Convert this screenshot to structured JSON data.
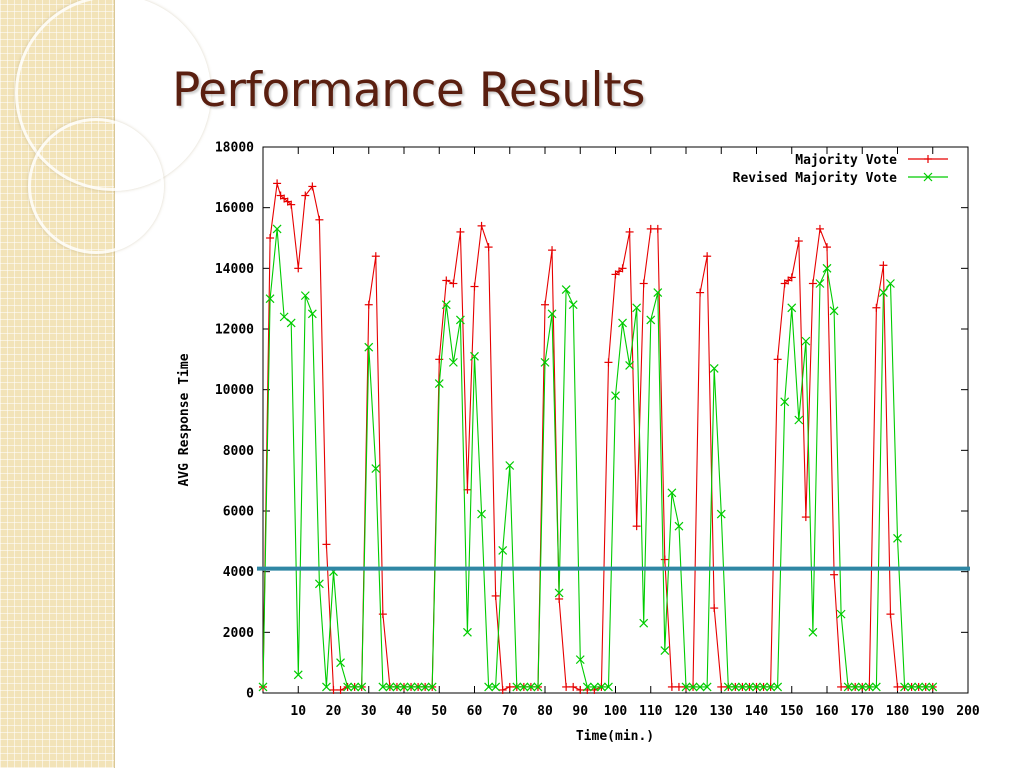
{
  "slide": {
    "title": "Performance Results"
  },
  "colors": {
    "title": "#5a1f10",
    "majority_vote": "#e60000",
    "revised_majority_vote": "#00cc00",
    "threshold_line": "#2f87a4",
    "side_panel": "#f2e3b8"
  },
  "chart_data": {
    "type": "line",
    "xlabel": "Time(min.)",
    "ylabel": "AVG Response Time",
    "xlim": [
      0,
      200
    ],
    "ylim": [
      0,
      18000
    ],
    "xticks": [
      10,
      20,
      30,
      40,
      50,
      60,
      70,
      80,
      90,
      100,
      110,
      120,
      130,
      140,
      150,
      160,
      170,
      180,
      190,
      200
    ],
    "yticks": [
      0,
      2000,
      4000,
      6000,
      8000,
      10000,
      12000,
      14000,
      16000,
      18000
    ],
    "legend_position": "top-right",
    "grid": false,
    "threshold_line_y": 4100,
    "series": [
      {
        "name": "Majority Vote",
        "color": "#e60000",
        "marker": "+",
        "points": [
          [
            0,
            200
          ],
          [
            2,
            15000
          ],
          [
            4,
            16800
          ],
          [
            5,
            16400
          ],
          [
            6,
            16300
          ],
          [
            7,
            16200
          ],
          [
            8,
            16100
          ],
          [
            10,
            14000
          ],
          [
            12,
            16400
          ],
          [
            14,
            16700
          ],
          [
            16,
            15600
          ],
          [
            18,
            4900
          ],
          [
            20,
            100
          ],
          [
            22,
            100
          ],
          [
            24,
            200
          ],
          [
            26,
            200
          ],
          [
            28,
            200
          ],
          [
            30,
            12800
          ],
          [
            32,
            14400
          ],
          [
            34,
            2600
          ],
          [
            36,
            200
          ],
          [
            38,
            200
          ],
          [
            40,
            200
          ],
          [
            42,
            200
          ],
          [
            44,
            200
          ],
          [
            46,
            200
          ],
          [
            48,
            200
          ],
          [
            50,
            11000
          ],
          [
            52,
            13600
          ],
          [
            54,
            13500
          ],
          [
            56,
            15200
          ],
          [
            58,
            6700
          ],
          [
            60,
            13400
          ],
          [
            62,
            15400
          ],
          [
            64,
            14700
          ],
          [
            66,
            3200
          ],
          [
            68,
            100
          ],
          [
            70,
            200
          ],
          [
            72,
            200
          ],
          [
            74,
            200
          ],
          [
            76,
            200
          ],
          [
            78,
            200
          ],
          [
            80,
            12800
          ],
          [
            82,
            14600
          ],
          [
            84,
            3100
          ],
          [
            86,
            200
          ],
          [
            88,
            200
          ],
          [
            90,
            100
          ],
          [
            92,
            100
          ],
          [
            94,
            100
          ],
          [
            96,
            200
          ],
          [
            98,
            10900
          ],
          [
            100,
            13800
          ],
          [
            101,
            13900
          ],
          [
            102,
            14000
          ],
          [
            104,
            15200
          ],
          [
            106,
            5500
          ],
          [
            108,
            13500
          ],
          [
            110,
            15300
          ],
          [
            112,
            15300
          ],
          [
            114,
            4400
          ],
          [
            116,
            200
          ],
          [
            118,
            200
          ],
          [
            120,
            200
          ],
          [
            122,
            200
          ],
          [
            124,
            13200
          ],
          [
            126,
            14400
          ],
          [
            128,
            2800
          ],
          [
            130,
            200
          ],
          [
            132,
            200
          ],
          [
            134,
            200
          ],
          [
            136,
            200
          ],
          [
            138,
            200
          ],
          [
            140,
            200
          ],
          [
            142,
            200
          ],
          [
            144,
            200
          ],
          [
            146,
            11000
          ],
          [
            148,
            13500
          ],
          [
            149,
            13600
          ],
          [
            150,
            13700
          ],
          [
            152,
            14900
          ],
          [
            154,
            5800
          ],
          [
            156,
            13500
          ],
          [
            158,
            15300
          ],
          [
            160,
            14700
          ],
          [
            162,
            3900
          ],
          [
            164,
            200
          ],
          [
            166,
            200
          ],
          [
            168,
            200
          ],
          [
            170,
            200
          ],
          [
            172,
            200
          ],
          [
            174,
            12700
          ],
          [
            176,
            14100
          ],
          [
            178,
            2600
          ],
          [
            180,
            200
          ],
          [
            182,
            200
          ],
          [
            184,
            200
          ],
          [
            186,
            200
          ],
          [
            188,
            200
          ],
          [
            190,
            200
          ]
        ]
      },
      {
        "name": "Revised Majority Vote",
        "color": "#00cc00",
        "marker": "x",
        "points": [
          [
            0,
            200
          ],
          [
            2,
            13000
          ],
          [
            4,
            15300
          ],
          [
            6,
            12400
          ],
          [
            8,
            12200
          ],
          [
            10,
            600
          ],
          [
            12,
            13100
          ],
          [
            14,
            12500
          ],
          [
            16,
            3600
          ],
          [
            18,
            200
          ],
          [
            20,
            4000
          ],
          [
            22,
            1000
          ],
          [
            24,
            200
          ],
          [
            26,
            200
          ],
          [
            28,
            200
          ],
          [
            30,
            11400
          ],
          [
            32,
            7400
          ],
          [
            34,
            200
          ],
          [
            36,
            200
          ],
          [
            38,
            200
          ],
          [
            40,
            200
          ],
          [
            42,
            200
          ],
          [
            44,
            200
          ],
          [
            46,
            200
          ],
          [
            48,
            200
          ],
          [
            50,
            10200
          ],
          [
            52,
            12800
          ],
          [
            54,
            10900
          ],
          [
            56,
            12300
          ],
          [
            58,
            2000
          ],
          [
            60,
            11100
          ],
          [
            62,
            5900
          ],
          [
            64,
            200
          ],
          [
            66,
            200
          ],
          [
            68,
            4700
          ],
          [
            70,
            7500
          ],
          [
            72,
            200
          ],
          [
            74,
            200
          ],
          [
            76,
            200
          ],
          [
            78,
            200
          ],
          [
            80,
            10900
          ],
          [
            82,
            12500
          ],
          [
            84,
            3300
          ],
          [
            86,
            13300
          ],
          [
            88,
            12800
          ],
          [
            90,
            1100
          ],
          [
            92,
            200
          ],
          [
            94,
            200
          ],
          [
            96,
            200
          ],
          [
            98,
            200
          ],
          [
            100,
            9800
          ],
          [
            102,
            12200
          ],
          [
            104,
            10800
          ],
          [
            106,
            12700
          ],
          [
            108,
            2300
          ],
          [
            110,
            12300
          ],
          [
            112,
            13200
          ],
          [
            114,
            1400
          ],
          [
            116,
            6600
          ],
          [
            118,
            5500
          ],
          [
            120,
            200
          ],
          [
            122,
            200
          ],
          [
            124,
            200
          ],
          [
            126,
            200
          ],
          [
            128,
            10700
          ],
          [
            130,
            5900
          ],
          [
            132,
            200
          ],
          [
            134,
            200
          ],
          [
            136,
            200
          ],
          [
            138,
            200
          ],
          [
            140,
            200
          ],
          [
            142,
            200
          ],
          [
            144,
            200
          ],
          [
            146,
            200
          ],
          [
            148,
            9600
          ],
          [
            150,
            12700
          ],
          [
            152,
            9000
          ],
          [
            154,
            11600
          ],
          [
            156,
            2000
          ],
          [
            158,
            13500
          ],
          [
            160,
            14000
          ],
          [
            162,
            12600
          ],
          [
            164,
            2600
          ],
          [
            166,
            200
          ],
          [
            168,
            200
          ],
          [
            170,
            200
          ],
          [
            172,
            200
          ],
          [
            174,
            200
          ],
          [
            176,
            13200
          ],
          [
            178,
            13500
          ],
          [
            180,
            5100
          ],
          [
            182,
            200
          ],
          [
            184,
            200
          ],
          [
            186,
            200
          ],
          [
            188,
            200
          ],
          [
            190,
            200
          ]
        ]
      }
    ]
  }
}
